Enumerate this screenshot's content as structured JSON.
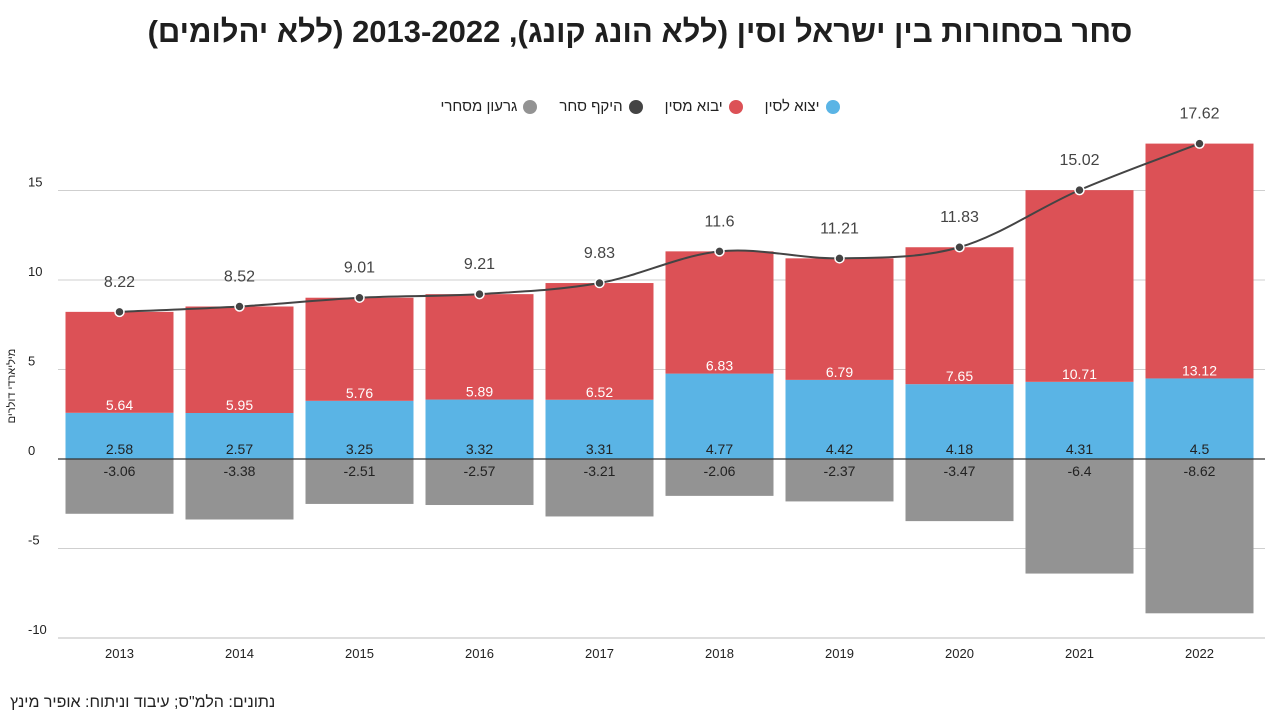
{
  "title": "סחר בסחורות בין ישראל וסין (ללא הונג קונג), 2013-2022 (ללא יהלומים)",
  "source": "נתונים: הלמ\"ס; עיבוד וניתוח: אופיר מינץ",
  "colors": {
    "exports": "#5ab4e5",
    "imports": "#dc5156",
    "volume": "#444444",
    "deficit": "#939393"
  },
  "chart_data": {
    "type": "bar",
    "title": "סחר בסחורות בין ישראל וסין (ללא הונג קונג), 2013-2022 (ללא יהלומים)",
    "ylabel": "מיליארדי דולרים",
    "xlabel": "",
    "ylim": [
      -10,
      18
    ],
    "yticks": [
      -10,
      -5,
      0,
      5,
      10,
      15
    ],
    "grid": true,
    "legend_position": "top-center",
    "categories": [
      "2013",
      "2014",
      "2015",
      "2016",
      "2017",
      "2018",
      "2019",
      "2020",
      "2021",
      "2022"
    ],
    "series": [
      {
        "name": "יצוא לסין",
        "type": "bar-stacked",
        "values": [
          2.58,
          2.57,
          3.25,
          3.32,
          3.31,
          4.77,
          4.42,
          4.18,
          4.31,
          4.5
        ]
      },
      {
        "name": "יבוא מסין",
        "type": "bar-stacked",
        "values": [
          5.64,
          5.95,
          5.76,
          5.89,
          6.52,
          6.83,
          6.79,
          7.65,
          10.71,
          13.12
        ]
      },
      {
        "name": "היקף סחר",
        "type": "line",
        "values": [
          8.22,
          8.52,
          9.01,
          9.21,
          9.83,
          11.6,
          11.21,
          11.83,
          15.02,
          17.62
        ]
      },
      {
        "name": "גרעון מסחרי",
        "type": "bar",
        "values": [
          -3.06,
          -3.38,
          -2.51,
          -2.57,
          -3.21,
          -2.06,
          -2.37,
          -3.47,
          -6.4,
          -8.62
        ]
      }
    ]
  }
}
